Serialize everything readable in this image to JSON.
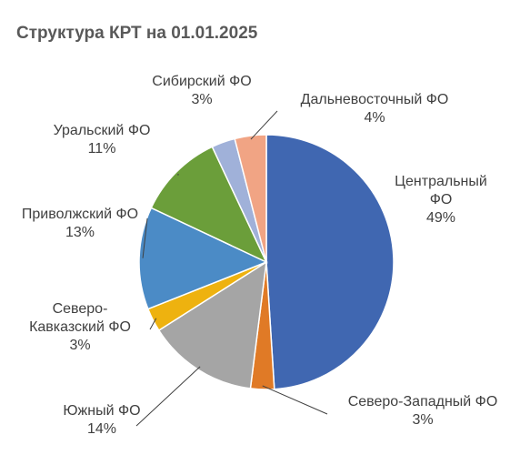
{
  "chart_data": {
    "type": "pie",
    "title": "Структура  КРТ на 01.01.2025",
    "categories": [
      "Центральный ФО",
      "Северо-Западный ФО",
      "Южный ФО",
      "Северо-Кавказский ФО",
      "Приволжский ФО",
      "Уральский ФО",
      "Сибирский ФО",
      "Дальневосточный ФО"
    ],
    "values": [
      49,
      3,
      14,
      3,
      13,
      11,
      3,
      4
    ],
    "value_labels": [
      "49%",
      "3%",
      "14%",
      "3%",
      "13%",
      "11%",
      "3%",
      "4%"
    ],
    "colors": [
      "#4067b1",
      "#e07a26",
      "#a5a5a5",
      "#eeb20f",
      "#4b8bc6",
      "#6b9e3a",
      "#a0b1d9",
      "#f1a484"
    ]
  }
}
